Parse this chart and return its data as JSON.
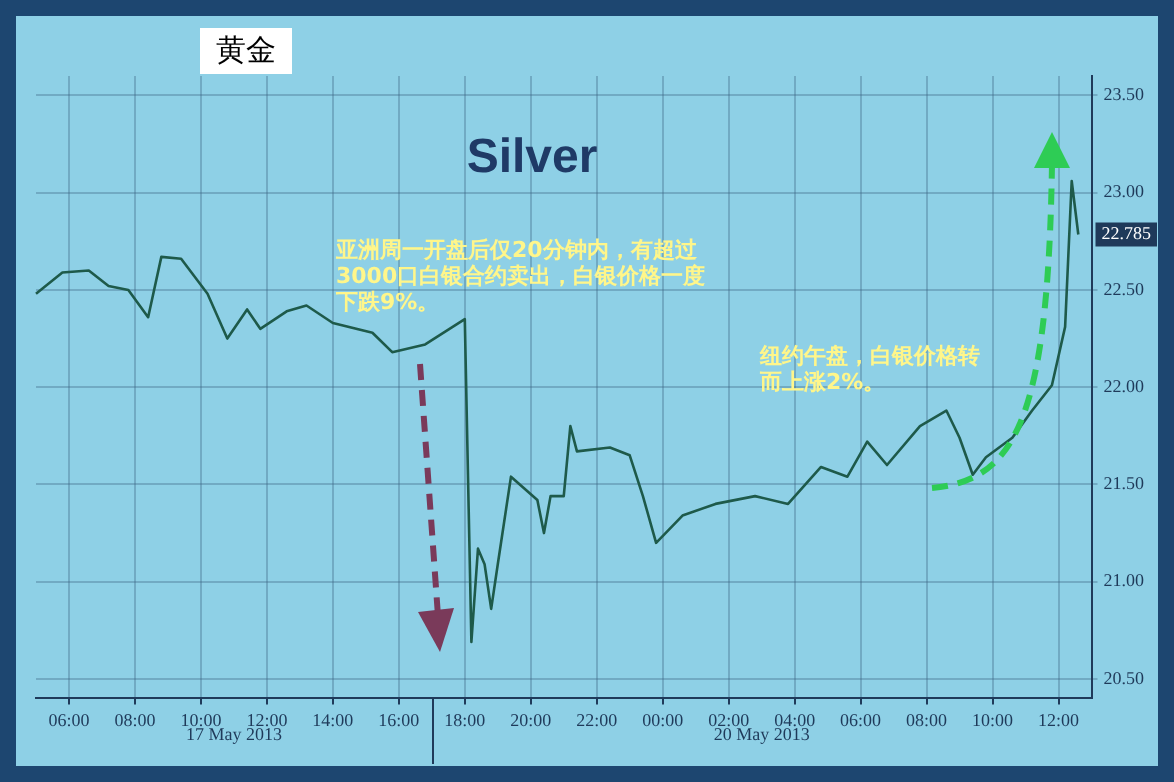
{
  "chart_data": {
    "type": "line",
    "title": "Silver",
    "categories": [
      null,
      null,
      null,
      null,
      null,
      "06:00",
      null,
      null,
      null,
      null,
      null,
      null,
      null,
      null,
      null,
      "08:00",
      null,
      null,
      null,
      null,
      null,
      null,
      null,
      null,
      null,
      "10:00",
      null,
      null,
      null,
      null,
      null,
      null,
      null,
      null,
      null,
      "12:00",
      null,
      null,
      null,
      null,
      null,
      null,
      null,
      null,
      null,
      "14:00",
      null,
      null,
      null,
      null,
      null,
      null,
      null,
      null,
      null,
      "16:00",
      null,
      null,
      null,
      null,
      null,
      null,
      null,
      null,
      null,
      "18:00",
      null,
      null,
      null,
      null,
      null,
      null,
      null,
      null,
      null,
      "20:00",
      null,
      null,
      null,
      null,
      null,
      null,
      null,
      null,
      null,
      "22:00",
      null,
      null,
      null,
      null,
      null,
      null,
      null,
      null,
      null,
      "00:00",
      null,
      null,
      null,
      null,
      null,
      null,
      null,
      null,
      null,
      "02:00",
      null,
      null,
      null,
      null,
      null,
      null,
      null,
      null,
      null,
      "04:00",
      null,
      null,
      null,
      null,
      null,
      null,
      null,
      null,
      null,
      "06:00",
      null,
      null,
      null,
      null,
      null,
      null,
      null,
      null,
      null,
      "08:00",
      null,
      null,
      null,
      null,
      null,
      null,
      null,
      null,
      null,
      "10:00",
      null,
      null,
      null,
      null,
      null,
      null,
      null,
      null,
      null,
      "12:00",
      null,
      null,
      null,
      null,
      null
    ],
    "series": [
      {
        "color": "#1e5a4a",
        "values": [
          22.48,
          null,
          null,
          null,
          22.59,
          null,
          null,
          null,
          22.6,
          null,
          null,
          22.52,
          null,
          null,
          22.5,
          null,
          null,
          22.36,
          null,
          22.67,
          null,
          null,
          22.66,
          null,
          null,
          null,
          22.48,
          null,
          null,
          22.25,
          null,
          null,
          22.4,
          null,
          22.3,
          null,
          null,
          null,
          22.39,
          null,
          null,
          22.42,
          null,
          null,
          null,
          22.33,
          null,
          null,
          null,
          null,
          null,
          22.28,
          null,
          null,
          22.18,
          null,
          null,
          null,
          null,
          22.22,
          null,
          null,
          null,
          null,
          null,
          22.35,
          20.69,
          21.17,
          21.09,
          20.86,
          21.09,
          null,
          21.54,
          null,
          null,
          null,
          21.42,
          21.25,
          21.44,
          null,
          21.44,
          21.8,
          21.67,
          null,
          null,
          null,
          null,
          21.69,
          null,
          null,
          21.65,
          null,
          21.44,
          null,
          21.2,
          null,
          null,
          null,
          21.34,
          null,
          null,
          null,
          null,
          21.4,
          null,
          null,
          null,
          null,
          null,
          21.44,
          null,
          null,
          null,
          null,
          21.4,
          null,
          null,
          null,
          null,
          21.59,
          null,
          null,
          null,
          21.54,
          null,
          null,
          21.72,
          null,
          null,
          21.6,
          null,
          null,
          null,
          null,
          21.8,
          null,
          null,
          null,
          21.88,
          null,
          21.74,
          null,
          21.55,
          null,
          21.64,
          null,
          null,
          null,
          21.74,
          null,
          null,
          21.88,
          null,
          null,
          22.01,
          null,
          22.31,
          23.06,
          22.785,
          null,
          null
        ]
      }
    ],
    "ylim": [
      20.4,
      23.6
    ],
    "yticks": [
      {
        "value": 20.5,
        "label": "20.50"
      },
      {
        "value": 21,
        "label": "21.00"
      },
      {
        "value": 21.5,
        "label": "21.50"
      },
      {
        "value": 22,
        "label": "22.00"
      },
      {
        "value": 22.5,
        "label": "22.50"
      },
      {
        "value": 23,
        "label": "23.00"
      },
      {
        "value": 23.5,
        "label": "23.50"
      }
    ],
    "annotations": [
      "亚洲周一开盘后仅20分钟内，有超过3000口白银合约卖出，白银价格一度下跌9%。",
      "纽约午盘，白银价格转而上涨2%。",
      "17 May 2013",
      "20 May 2013",
      {
        "text": "22.785",
        "y": 22.785
      },
      "黄金"
    ],
    "grid": true,
    "legend": false,
    "marker": "none",
    "line_style": "solid"
  }
}
